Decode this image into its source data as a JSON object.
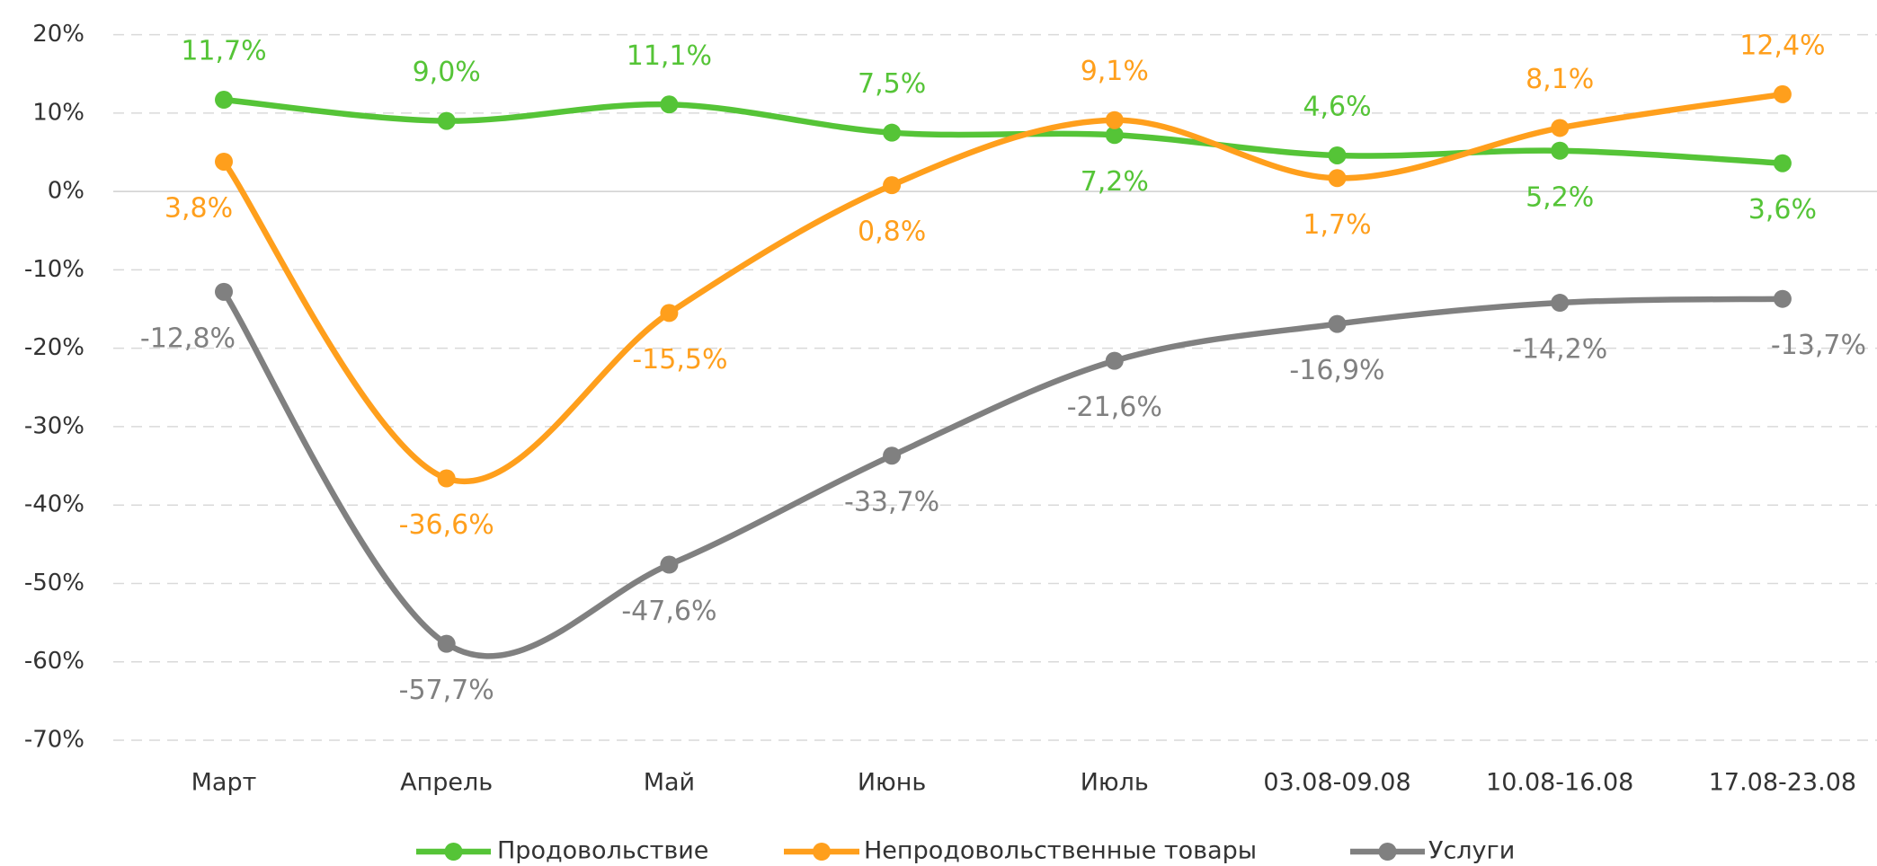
{
  "chart_data": {
    "type": "line",
    "categories": [
      "Март",
      "Апрель",
      "Май",
      "Июнь",
      "Июль",
      "03.08-09.08",
      "10.08-16.08",
      "17.08-23.08"
    ],
    "series": [
      {
        "name": "Продовольствие",
        "color": "#55c437",
        "values": [
          11.7,
          9.0,
          11.1,
          7.5,
          7.2,
          4.6,
          5.2,
          3.6
        ],
        "value_labels": [
          "11,7%",
          "9,0%",
          "11,1%",
          "7,5%",
          "7,2%",
          "4,6%",
          "5,2%",
          "3,6%"
        ]
      },
      {
        "name": "Непродовольственные товары",
        "color": "#ff9f1c",
        "values": [
          3.8,
          -36.6,
          -15.5,
          0.8,
          9.1,
          1.7,
          8.1,
          12.4
        ],
        "value_labels": [
          "3,8%",
          "-36,6%",
          "-15,5%",
          "0,8%",
          "9,1%",
          "1,7%",
          "8,1%",
          "12,4%"
        ]
      },
      {
        "name": "Услуги",
        "color": "#808080",
        "values": [
          -12.8,
          -57.7,
          -47.6,
          -33.7,
          -21.6,
          -16.9,
          -14.2,
          -13.7
        ],
        "value_labels": [
          "-12,8%",
          "-57,7%",
          "-47,6%",
          "-33,7%",
          "-21,6%",
          "-16,9%",
          "-14,2%",
          "-13,7%"
        ]
      }
    ],
    "ylim": [
      -70,
      20
    ],
    "yticks": [
      {
        "value": 20,
        "label": "20%"
      },
      {
        "value": 10,
        "label": "10%"
      },
      {
        "value": 0,
        "label": "0%"
      },
      {
        "value": -10,
        "label": "-10%"
      },
      {
        "value": -20,
        "label": "-20%"
      },
      {
        "value": -30,
        "label": "-30%"
      },
      {
        "value": -40,
        "label": "-40%"
      },
      {
        "value": -50,
        "label": "-50%"
      },
      {
        "value": -60,
        "label": "-60%"
      },
      {
        "value": -70,
        "label": "-70%"
      }
    ],
    "grid": true,
    "legend": "bottom"
  }
}
